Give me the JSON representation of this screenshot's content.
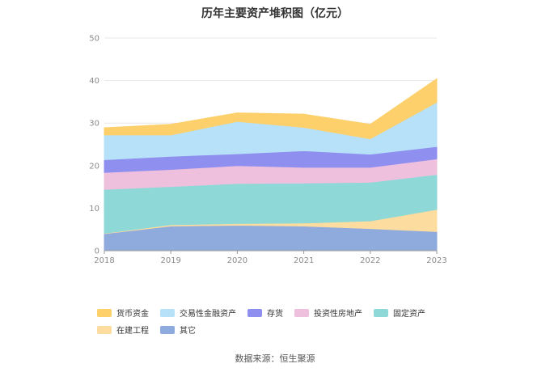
{
  "chart_data": {
    "type": "area",
    "stacked": true,
    "title": "历年主要资产堆积图（亿元）",
    "categories": [
      "2018",
      "2019",
      "2020",
      "2021",
      "2022",
      "2023"
    ],
    "ylim": [
      0,
      50
    ],
    "yticks": [
      "0",
      "10",
      "20",
      "30",
      "40",
      "50"
    ],
    "grid": true,
    "legend_position": "bottom",
    "series": [
      {
        "name": "其它",
        "color": "#8faadc",
        "values": [
          4.0,
          5.8,
          6.0,
          5.8,
          5.2,
          4.5
        ]
      },
      {
        "name": "在建工程",
        "color": "#fddca0",
        "values": [
          0.1,
          0.3,
          0.4,
          0.7,
          1.8,
          5.2
        ]
      },
      {
        "name": "固定资产",
        "color": "#8ed8d8",
        "values": [
          10.3,
          9.0,
          9.4,
          9.4,
          9.1,
          8.2
        ]
      },
      {
        "name": "投资性房地产",
        "color": "#eec0dd",
        "values": [
          4.0,
          4.0,
          4.2,
          3.7,
          3.5,
          3.7
        ]
      },
      {
        "name": "存货",
        "color": "#8f8ff0",
        "values": [
          3.0,
          3.1,
          2.8,
          3.9,
          3.1,
          2.9
        ]
      },
      {
        "name": "交易性金融资产",
        "color": "#b7e1f8",
        "values": [
          5.8,
          5.0,
          7.6,
          5.5,
          3.6,
          10.4
        ]
      },
      {
        "name": "货币资金",
        "color": "#fdd06c",
        "values": [
          1.7,
          2.5,
          2.0,
          3.1,
          3.4,
          5.5
        ]
      }
    ]
  },
  "legend_order": [
    6,
    5,
    4,
    3,
    2,
    1,
    0
  ],
  "source_text": "数据来源：恒生聚源"
}
